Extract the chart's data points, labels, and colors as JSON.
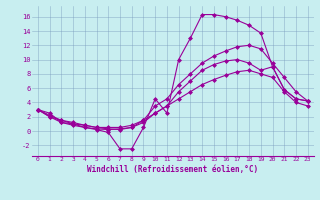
{
  "xlabel": "Windchill (Refroidissement éolien,°C)",
  "bg_color": "#c8eef0",
  "line_color": "#990099",
  "xlim": [
    -0.5,
    23.5
  ],
  "ylim": [
    -3.5,
    17.5
  ],
  "yticks": [
    -2,
    0,
    2,
    4,
    6,
    8,
    10,
    12,
    14,
    16
  ],
  "xticks": [
    0,
    1,
    2,
    3,
    4,
    5,
    6,
    7,
    8,
    9,
    10,
    11,
    12,
    13,
    14,
    15,
    16,
    17,
    18,
    19,
    20,
    21,
    22,
    23
  ],
  "series": [
    [
      3.0,
      2.5,
      1.2,
      1.0,
      0.5,
      0.2,
      -0.2,
      -2.5,
      -2.5,
      0.5,
      4.5,
      2.5,
      10.0,
      13.0,
      16.3,
      16.3,
      16.0,
      15.5,
      14.8,
      13.7,
      null,
      null,
      null,
      null
    ],
    [
      3.0,
      2.5,
      1.2,
      1.0,
      0.5,
      0.2,
      -0.2,
      -2.5,
      -2.5,
      0.5,
      4.5,
      2.5,
      10.0,
      13.0,
      16.3,
      16.3,
      16.0,
      15.5,
      14.8,
      13.7,
      9.0,
      5.8,
      4.5,
      4.2
    ],
    [
      3.0,
      2.2,
      1.5,
      1.2,
      0.8,
      0.5,
      0.3,
      0.2,
      0.5,
      1.5,
      3.5,
      4.5,
      6.5,
      8.0,
      9.5,
      10.5,
      11.2,
      11.8,
      12.0,
      11.5,
      null,
      null,
      null,
      null
    ],
    [
      3.0,
      2.2,
      1.5,
      1.2,
      0.8,
      0.5,
      0.3,
      0.2,
      0.5,
      1.5,
      3.5,
      4.5,
      6.5,
      8.0,
      9.5,
      10.5,
      11.2,
      11.8,
      12.0,
      11.5,
      9.5,
      7.5,
      5.5,
      4.2
    ],
    [
      3.0,
      2.0,
      1.2,
      0.8,
      0.5,
      0.3,
      0.2,
      0.3,
      0.5,
      1.2,
      2.5,
      3.5,
      5.5,
      7.0,
      8.5,
      9.3,
      9.8,
      10.0,
      9.5,
      8.5,
      null,
      null,
      null,
      null
    ],
    [
      3.0,
      2.0,
      1.2,
      0.8,
      0.5,
      0.3,
      0.2,
      0.3,
      0.5,
      1.2,
      2.5,
      3.5,
      5.5,
      7.0,
      8.5,
      9.3,
      9.8,
      10.0,
      9.5,
      8.5,
      9.0,
      5.8,
      4.5,
      4.2
    ],
    [
      3.0,
      2.0,
      1.5,
      1.0,
      0.8,
      0.5,
      0.5,
      0.5,
      0.8,
      1.5,
      2.5,
      3.5,
      4.5,
      5.5,
      6.5,
      7.2,
      7.8,
      8.3,
      8.5,
      8.0,
      null,
      null,
      null,
      null
    ],
    [
      3.0,
      2.0,
      1.5,
      1.0,
      0.8,
      0.5,
      0.5,
      0.5,
      0.8,
      1.5,
      2.5,
      3.5,
      4.5,
      5.5,
      6.5,
      7.2,
      7.8,
      8.3,
      8.5,
      8.0,
      7.5,
      5.5,
      4.0,
      3.5
    ]
  ],
  "series_clean": [
    [
      3.0,
      2.5,
      1.2,
      1.0,
      0.5,
      0.2,
      -0.2,
      -2.5,
      -2.5,
      0.5,
      4.5,
      2.5,
      10.0,
      13.0,
      16.3,
      16.3,
      16.0,
      15.5,
      14.8,
      13.7,
      9.0,
      5.8,
      4.5,
      4.2
    ],
    [
      3.0,
      2.2,
      1.5,
      1.2,
      0.8,
      0.5,
      0.3,
      0.2,
      0.5,
      1.5,
      3.5,
      4.5,
      6.5,
      8.0,
      9.5,
      10.5,
      11.2,
      11.8,
      12.0,
      11.5,
      9.5,
      7.5,
      5.5,
      4.2
    ],
    [
      3.0,
      2.0,
      1.2,
      0.8,
      0.5,
      0.3,
      0.2,
      0.3,
      0.5,
      1.2,
      2.5,
      3.5,
      5.5,
      7.0,
      8.5,
      9.3,
      9.8,
      10.0,
      9.5,
      8.5,
      9.0,
      5.8,
      4.5,
      4.2
    ],
    [
      3.0,
      2.0,
      1.5,
      1.0,
      0.8,
      0.5,
      0.5,
      0.5,
      0.8,
      1.5,
      2.5,
      3.5,
      4.5,
      5.5,
      6.5,
      7.2,
      7.8,
      8.3,
      8.5,
      8.0,
      7.5,
      5.5,
      4.0,
      3.5
    ]
  ]
}
